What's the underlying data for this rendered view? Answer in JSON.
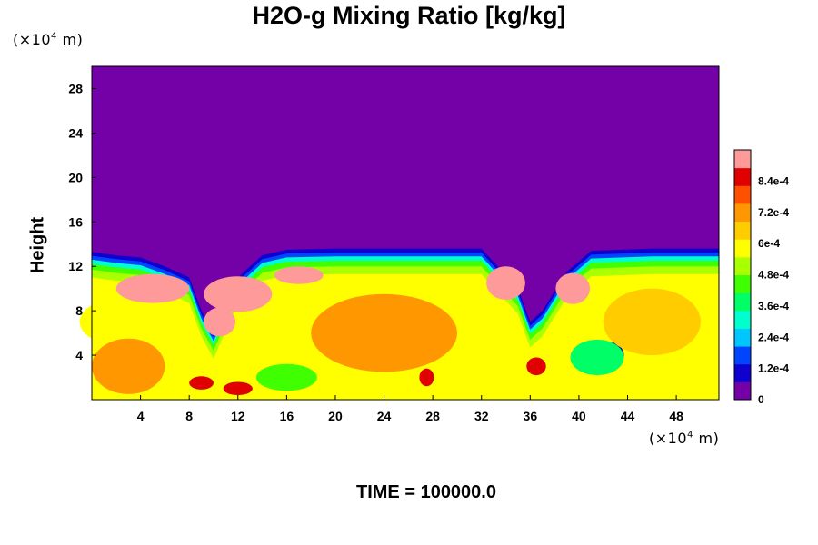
{
  "chart_data": {
    "type": "heatmap",
    "title": "H2O-g Mixing Ratio [kg/kg]",
    "ylabel": "Height",
    "y_unit": "(×10",
    "x_unit": "(×10",
    "unit_exponent": "4",
    "unit_suffix": " m)",
    "xlim": [
      0,
      51.5
    ],
    "ylim": [
      0,
      30
    ],
    "x_ticks": [
      "4",
      "8",
      "12",
      "16",
      "20",
      "24",
      "28",
      "32",
      "36",
      "40",
      "44",
      "48"
    ],
    "y_ticks": [
      "4",
      "8",
      "12",
      "16",
      "20",
      "24",
      "28"
    ],
    "colorbar_ticks": [
      "0",
      "1.2e-4",
      "2.4e-4",
      "3.6e-4",
      "4.8e-4",
      "6e-4",
      "7.2e-4",
      "8.4e-4"
    ],
    "colorbar_range": [
      0,
      0.00096
    ],
    "colormap": [
      "#7400a8",
      "#1000cf",
      "#0044ff",
      "#00c6ff",
      "#00ffcc",
      "#00ff66",
      "#40ff00",
      "#aaff00",
      "#ffff00",
      "#ffcc00",
      "#ff9800",
      "#ff5000",
      "#e00000",
      "#ff9a9a"
    ],
    "field_description": "water vapour mixing ratio field; dry above ~13.5e4 m, moist turbulent layer below",
    "boundary_layer_top": [
      [
        0,
        13.3
      ],
      [
        2,
        13.0
      ],
      [
        4,
        12.8
      ],
      [
        6,
        12.0
      ],
      [
        8,
        11.0
      ],
      [
        9,
        8.0
      ],
      [
        10,
        6.0
      ],
      [
        12,
        11.0
      ],
      [
        14,
        13.0
      ],
      [
        16,
        13.5
      ],
      [
        20,
        13.6
      ],
      [
        28,
        13.6
      ],
      [
        32,
        13.6
      ],
      [
        35,
        10.0
      ],
      [
        36,
        7.0
      ],
      [
        37,
        8.0
      ],
      [
        39,
        11.5
      ],
      [
        41,
        13.4
      ],
      [
        46,
        13.6
      ],
      [
        51.5,
        13.6
      ]
    ],
    "blobs": [
      {
        "x": 5.0,
        "y": 10.0,
        "rx": 3.0,
        "ry": 1.3,
        "value": 0.00092
      },
      {
        "x": 12.0,
        "y": 9.5,
        "rx": 2.8,
        "ry": 1.6,
        "value": 0.00092
      },
      {
        "x": 10.5,
        "y": 7.0,
        "rx": 1.3,
        "ry": 1.3,
        "value": 0.00092
      },
      {
        "x": 17.0,
        "y": 11.2,
        "rx": 2.0,
        "ry": 0.8,
        "value": 0.0009
      },
      {
        "x": 34.0,
        "y": 10.5,
        "rx": 1.6,
        "ry": 1.5,
        "value": 0.00092
      },
      {
        "x": 39.5,
        "y": 10.0,
        "rx": 1.4,
        "ry": 1.4,
        "value": 0.0009
      },
      {
        "x": 2.0,
        "y": 7.0,
        "rx": 3.0,
        "ry": 2.0,
        "value": 0.00055
      },
      {
        "x": 16.0,
        "y": 2.0,
        "rx": 2.5,
        "ry": 1.2,
        "value": 0.00045
      },
      {
        "x": 42.5,
        "y": 4.0,
        "rx": 1.2,
        "ry": 1.2,
        "value": 0.00012
      },
      {
        "x": 41.5,
        "y": 3.8,
        "rx": 2.2,
        "ry": 1.6,
        "value": 0.0004
      },
      {
        "x": 36.5,
        "y": 3.0,
        "rx": 0.8,
        "ry": 0.8,
        "value": 0.00085
      },
      {
        "x": 27.5,
        "y": 2.0,
        "rx": 0.6,
        "ry": 0.8,
        "value": 0.00085
      },
      {
        "x": 9.0,
        "y": 1.5,
        "rx": 1.0,
        "ry": 0.6,
        "value": 0.00085
      },
      {
        "x": 12.0,
        "y": 1.0,
        "rx": 1.2,
        "ry": 0.6,
        "value": 0.00085
      },
      {
        "x": 24.0,
        "y": 6.0,
        "rx": 6.0,
        "ry": 3.5,
        "value": 0.00072
      },
      {
        "x": 46.0,
        "y": 7.0,
        "rx": 4.0,
        "ry": 3.0,
        "value": 0.00066
      },
      {
        "x": 3.0,
        "y": 3.0,
        "rx": 3.0,
        "ry": 2.5,
        "value": 0.0007
      }
    ]
  },
  "footer": {
    "label": "TIME = 100000.0"
  }
}
